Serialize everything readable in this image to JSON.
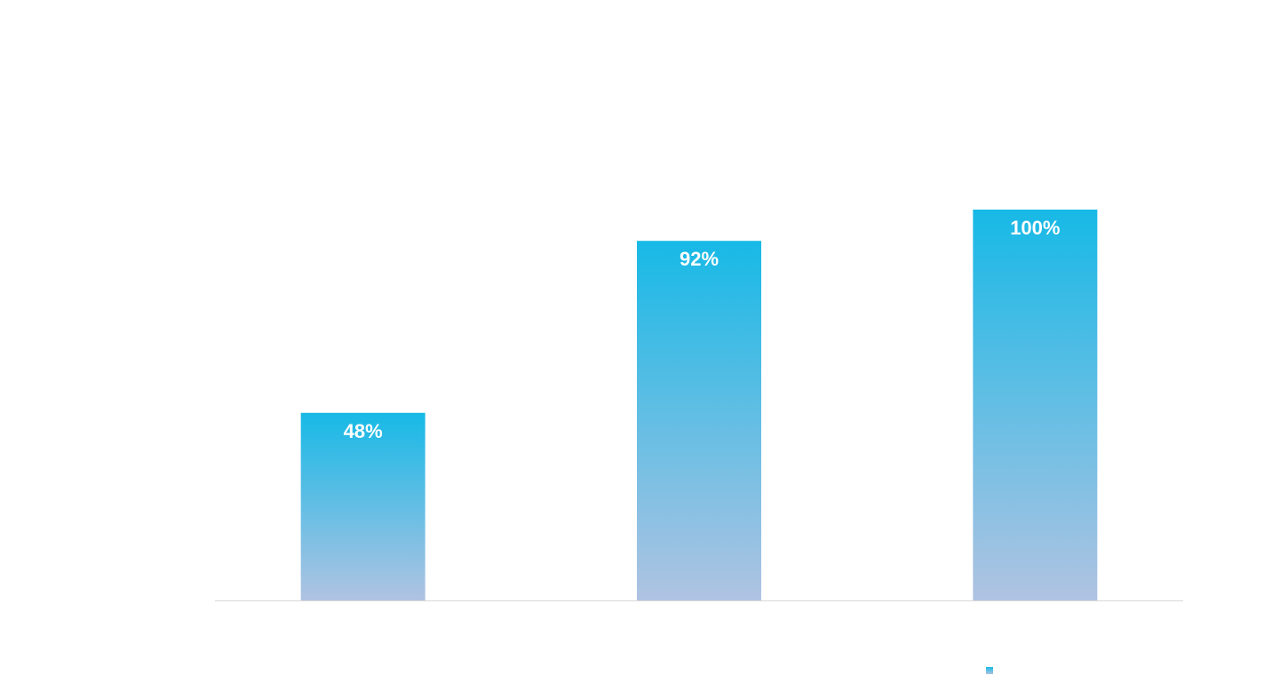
{
  "chart_data": {
    "type": "bar",
    "title": "",
    "xlabel": "",
    "ylabel": "",
    "categories": [
      "",
      "",
      ""
    ],
    "values": [
      48,
      92,
      100
    ],
    "data_labels": [
      "48%",
      "92%",
      "100%"
    ],
    "ylim": [
      0,
      120
    ],
    "grid": false,
    "legend": {
      "placement": "bottom-right",
      "entries": [
        ""
      ]
    },
    "colors": {
      "bar_top": "#17b9e6",
      "bar_bottom": "#b0c3e2",
      "axis": "#d9d9d9"
    }
  }
}
